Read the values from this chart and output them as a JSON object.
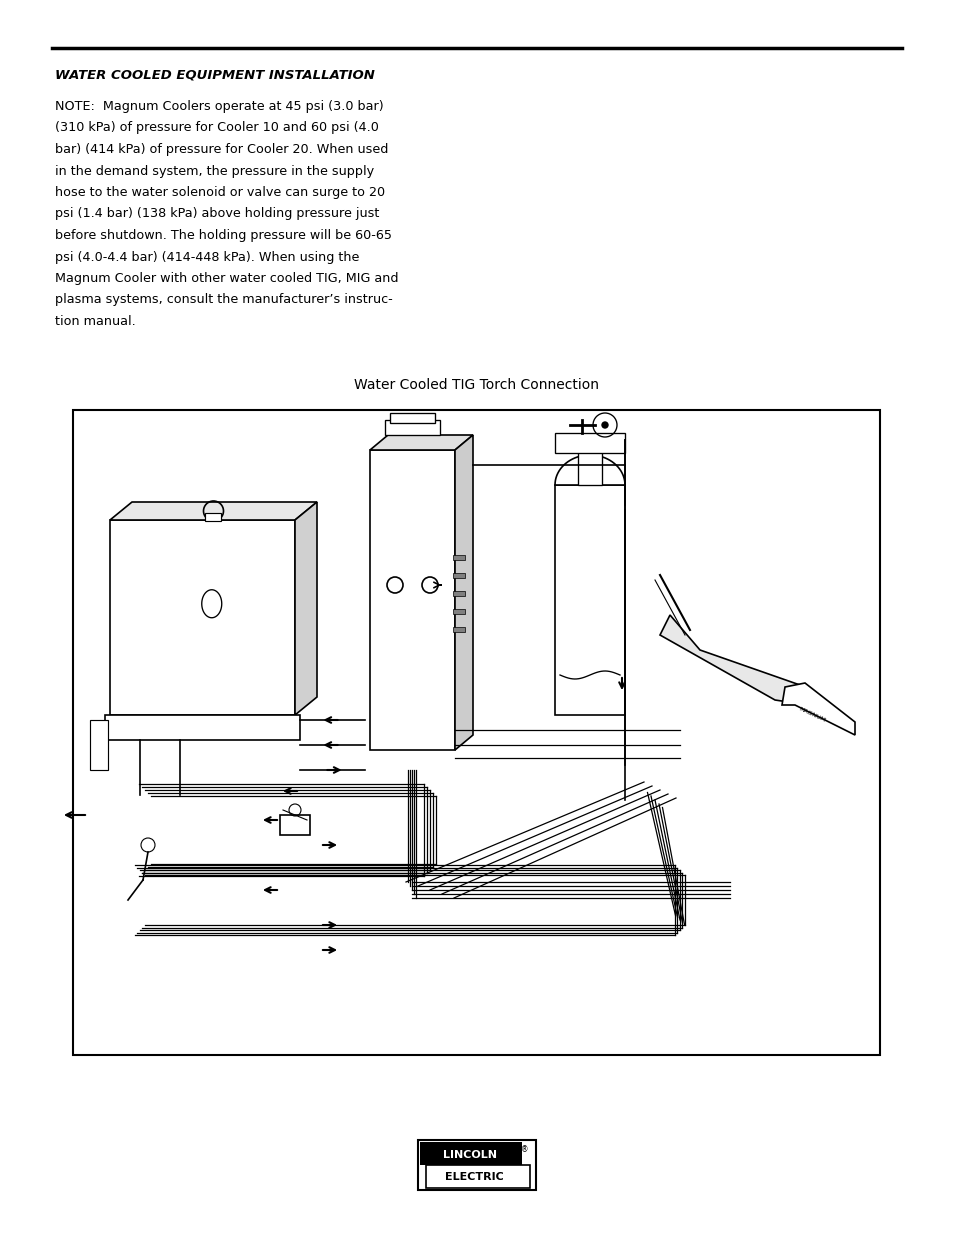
{
  "background_color": "#ffffff",
  "section_title": "WATER COOLED EQUIPMENT INSTALLATION",
  "note_lines": [
    "NOTE:  Magnum Coolers operate at 45 psi (3.0 bar)",
    "(310 kPa) of pressure for Cooler 10 and 60 psi (4.0",
    "bar) (414 kPa) of pressure for Cooler 20. When used",
    "in the demand system, the pressure in the supply",
    "hose to the water solenoid or valve can surge to 20",
    "psi (1.4 bar) (138 kPa) above holding pressure just",
    "before shutdown. The holding pressure will be 60-65",
    "psi (4.0-4.4 bar) (414-448 kPa). When using the",
    "Magnum Cooler with other water cooled TIG, MIG and",
    "plasma systems, consult the manufacturer’s instruc-",
    "tion manual."
  ],
  "diagram_caption": "Water Cooled TIG Torch Connection",
  "logo_text_top": "LINCOLN",
  "logo_text_bottom": "ELECTRIC"
}
